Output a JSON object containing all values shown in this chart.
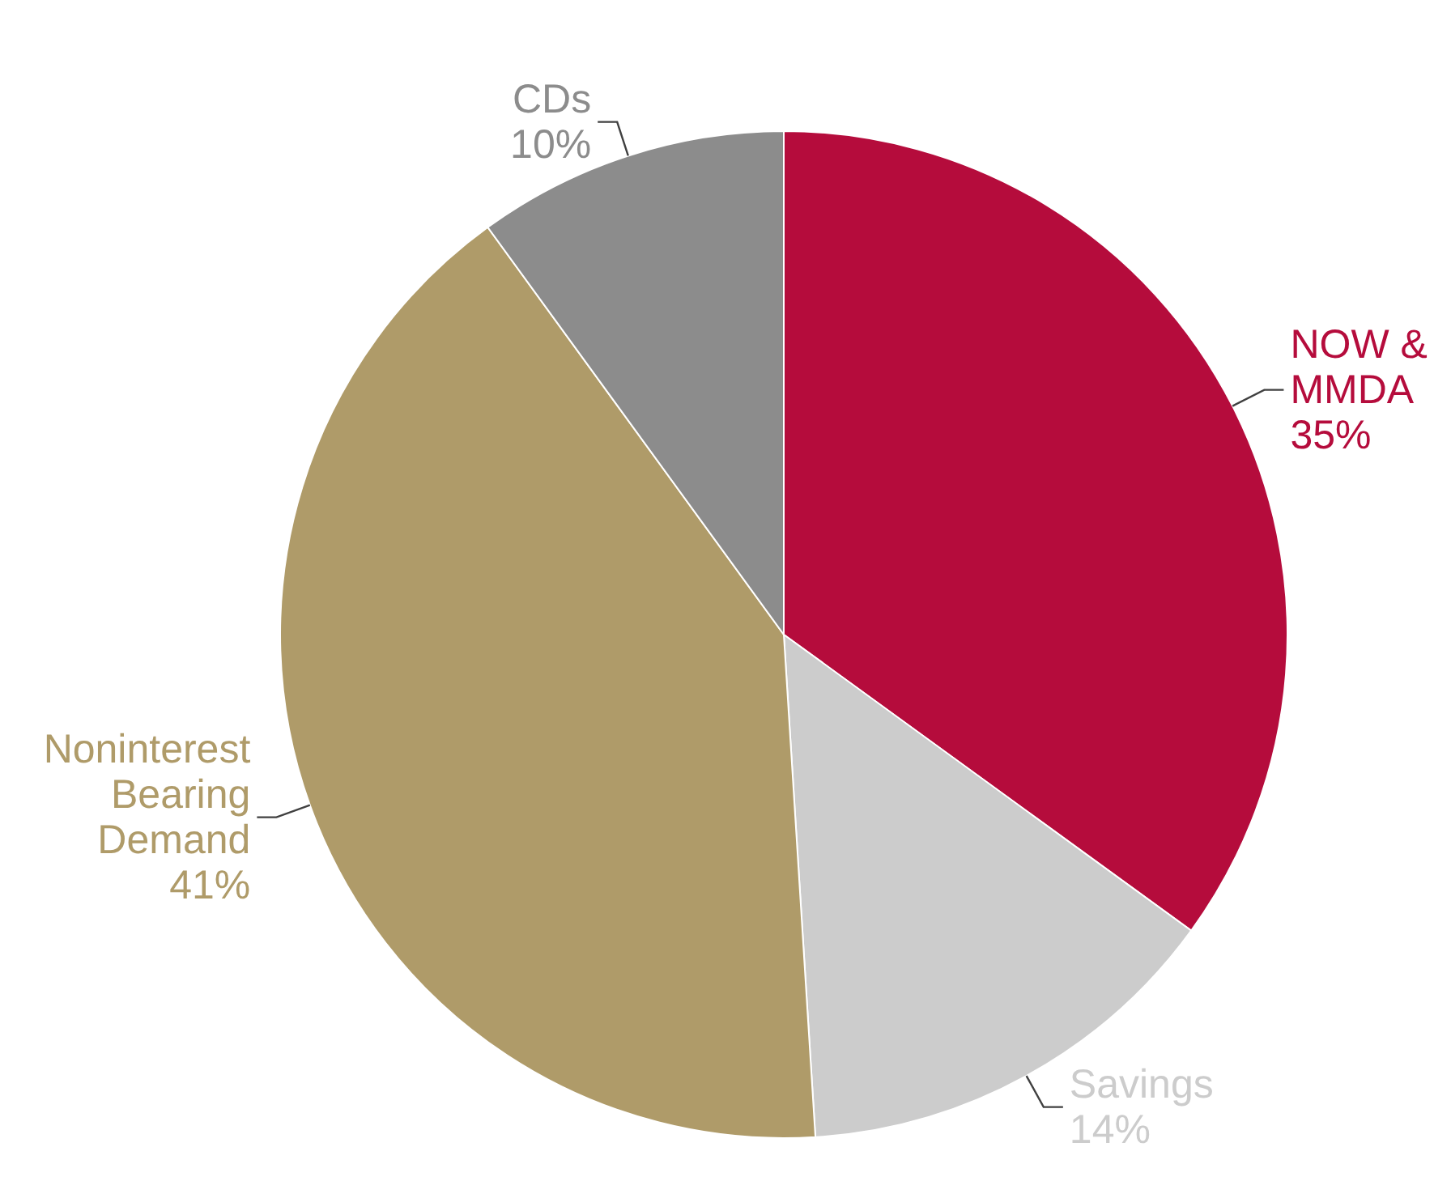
{
  "chart_data": {
    "type": "pie",
    "categories": [
      "NOW & MMDA",
      "Savings",
      "Noninterest Bearing Demand",
      "CDs"
    ],
    "values": [
      35,
      14,
      41,
      10
    ],
    "colors": [
      "#b50c3c",
      "#cccccc",
      "#af9b69",
      "#8c8c8c"
    ],
    "value_labels": [
      "35%",
      "14%",
      "41%",
      "10%"
    ]
  }
}
